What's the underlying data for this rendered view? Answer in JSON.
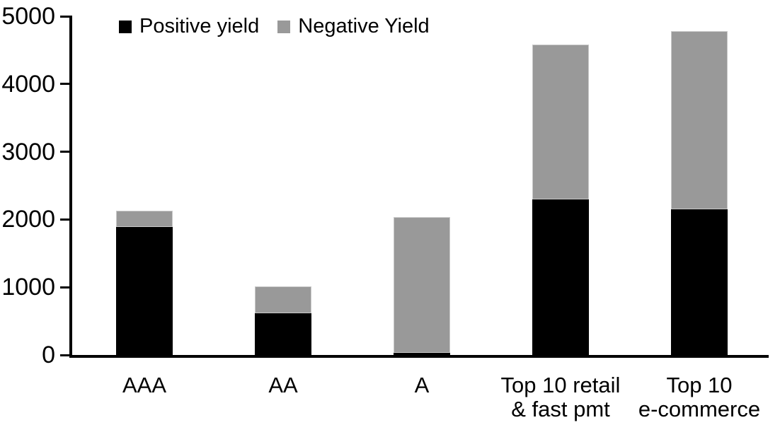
{
  "chart_data": {
    "type": "bar",
    "stacked": true,
    "title": "",
    "categories": [
      "AAA",
      "AA",
      "A",
      "Top 10 retail\n& fast pmt",
      "Top 10\ne-commerce"
    ],
    "series": [
      {
        "name": "Positive yield",
        "color": "#000000",
        "values": [
          1890,
          620,
          35,
          2300,
          2155
        ]
      },
      {
        "name": "Negative Yield",
        "color": "#999999",
        "values": [
          240,
          390,
          2005,
          2285,
          2630
        ]
      }
    ],
    "stack_totals": [
      2130,
      1010,
      2040,
      4585,
      4785
    ],
    "xlabel": "",
    "ylabel": "",
    "ylim": [
      0,
      5000
    ],
    "yticks": [
      0,
      1000,
      2000,
      3000,
      4000,
      5000
    ],
    "grid": false,
    "legend_position": "top-inside",
    "background_color": "#ffffff",
    "axis_color": "#000000",
    "negative_segment_border_color": "#c9c9c9"
  }
}
